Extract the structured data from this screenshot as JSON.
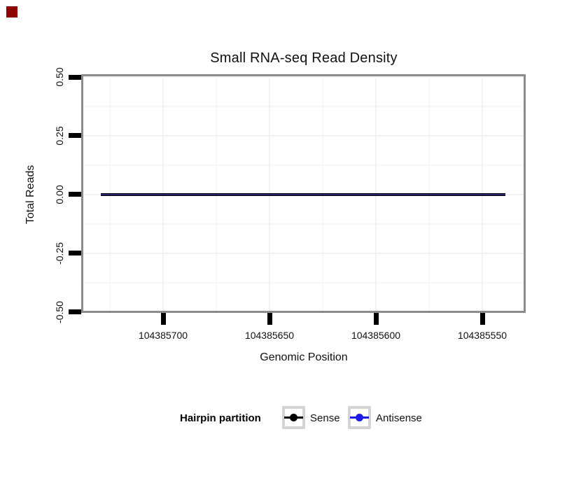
{
  "marker": {
    "color": "#8f0000",
    "note": "small dark red square at top-left corner"
  },
  "chart_data": {
    "type": "line",
    "title": "Small RNA-seq Read Density",
    "xlabel": "Genomic Position",
    "ylabel": "Total Reads",
    "x_tick_labels": [
      "104385700",
      "104385650",
      "104385600",
      "104385550"
    ],
    "y_tick_labels": [
      "0.50",
      "0.25",
      "0.00",
      "-0.25",
      "-0.50"
    ],
    "x_axis_reversed": true,
    "x_range_shown": [
      104385738,
      104385529
    ],
    "ylim": [
      -0.5,
      0.5
    ],
    "grid": "faint major and minor gridlines on white panel, grey panel border, thick black axis ticks",
    "series": [
      {
        "name": "Sense",
        "color": "#000000",
        "y_constant": 0,
        "x_start": 104385729,
        "x_end": 104385539
      },
      {
        "name": "Antisense",
        "color": "#1a1ae6",
        "y_constant": 0,
        "x_start": 104385729,
        "x_end": 104385539
      }
    ],
    "legend": {
      "title": "Hairpin partition",
      "position": "bottom",
      "entries": [
        {
          "label": "Sense",
          "color": "#000000"
        },
        {
          "label": "Antisense",
          "color": "#1a1ae6"
        }
      ]
    }
  }
}
